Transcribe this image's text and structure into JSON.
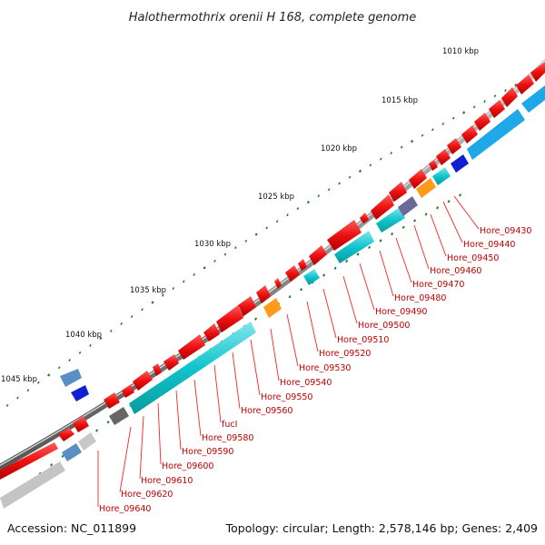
{
  "title": "Halothermothrix orenii H 168, complete genome",
  "accession": "Accession: NC_011899",
  "summary": "Topology: circular; Length: 2,578,146 bp; Genes: 2,409",
  "colors": {
    "backbone": "#8a8a8a",
    "forward_gene": "#ee1111",
    "reverse_gene": "#11c4cc",
    "label_text": "#c00000",
    "leader_line": "#ff2222",
    "tick_major": "#2a7a2a",
    "tick_minor": "#2a7a2a"
  },
  "scale_labels": [
    "1010 kbp",
    "1015 kbp",
    "1020 kbp",
    "1025 kbp",
    "1030 kbp",
    "1035 kbp",
    "1040 kbp",
    "1045 kbp"
  ],
  "gene_labels": [
    "Hore_09430",
    "Hore_09440",
    "Hore_09450",
    "Hore_09460",
    "Hore_09470",
    "Hore_09480",
    "Hore_09490",
    "Hore_09500",
    "Hore_09510",
    "Hore_09520",
    "Hore_09530",
    "Hore_09540",
    "Hore_09550",
    "Hore_09560",
    "fucI",
    "Hore_09580",
    "Hore_09590",
    "Hore_09600",
    "Hore_09610",
    "Hore_09620",
    "Hore_09640"
  ]
}
